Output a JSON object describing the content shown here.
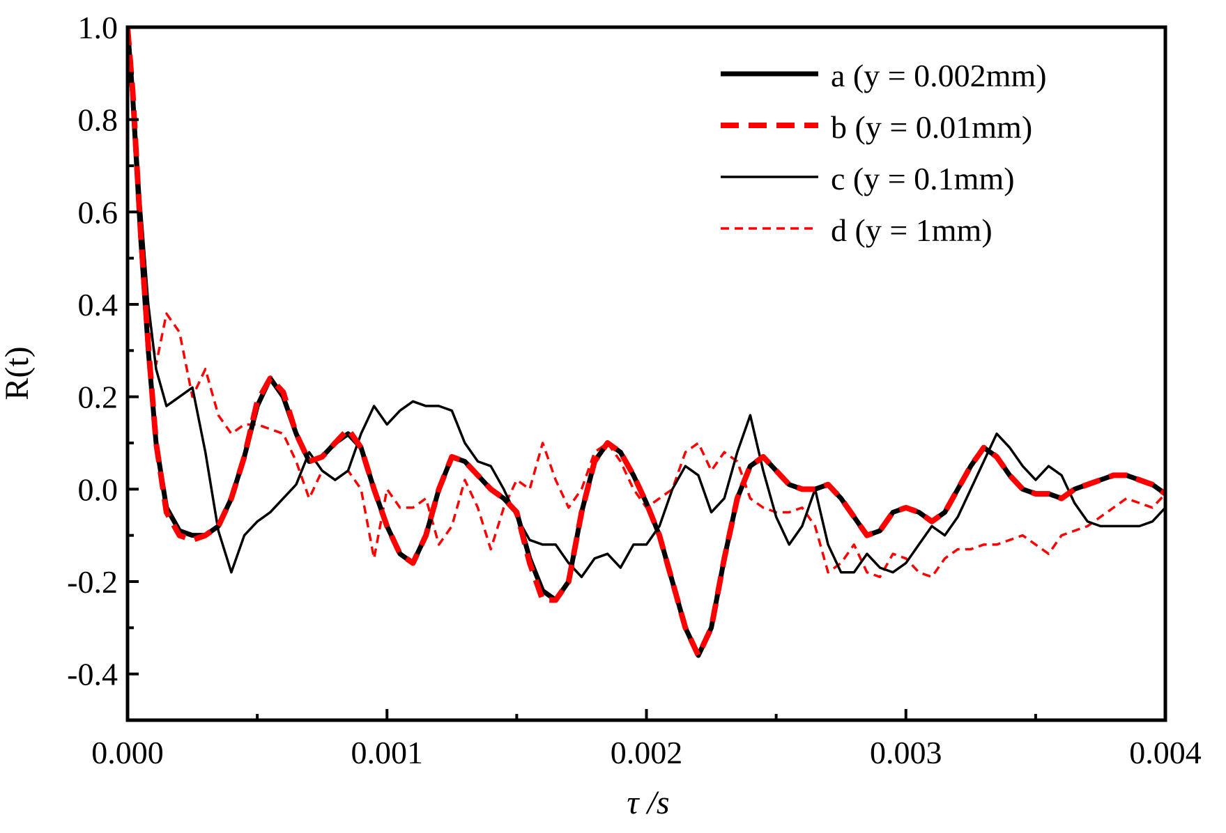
{
  "chart_data": {
    "type": "line",
    "title": "",
    "xlabel": "τ /s",
    "ylabel": "R(t)",
    "xlim": [
      0.0,
      0.004
    ],
    "ylim": [
      -0.5,
      1.0
    ],
    "x_ticks": [
      0.0,
      0.001,
      0.002,
      0.003,
      0.004
    ],
    "x_tick_labels": [
      "0.000",
      "0.001",
      "0.002",
      "0.003",
      "0.004"
    ],
    "y_ticks": [
      1.0,
      0.8,
      0.6,
      0.4,
      0.2,
      0.0,
      -0.2,
      -0.4
    ],
    "y_tick_labels": [
      "1.0",
      "0.8",
      "0.6",
      "0.4",
      "0.2",
      "0.0",
      "-0.2",
      "-0.4"
    ],
    "grid": false,
    "legend_position": "top-right",
    "series": [
      {
        "name": "a (y = 0.002mm)",
        "color": "#000000",
        "line_style": "solid-thick",
        "x": [
          0.0,
          2e-05,
          5e-05,
          8e-05,
          0.00011,
          0.00015,
          0.0002,
          0.00025,
          0.0003,
          0.00035,
          0.0004,
          0.00045,
          0.0005,
          0.00055,
          0.0006,
          0.00065,
          0.0007,
          0.00075,
          0.0008,
          0.00085,
          0.0009,
          0.00095,
          0.001,
          0.00105,
          0.0011,
          0.00115,
          0.0012,
          0.00125,
          0.0013,
          0.00135,
          0.0014,
          0.00145,
          0.0015,
          0.00155,
          0.0016,
          0.00165,
          0.0017,
          0.00175,
          0.0018,
          0.00185,
          0.0019,
          0.00195,
          0.002,
          0.00205,
          0.0021,
          0.00215,
          0.0022,
          0.00225,
          0.0023,
          0.00235,
          0.0024,
          0.00245,
          0.0025,
          0.00255,
          0.0026,
          0.00265,
          0.0027,
          0.00275,
          0.0028,
          0.00285,
          0.0029,
          0.00295,
          0.003,
          0.00305,
          0.0031,
          0.00315,
          0.0032,
          0.00325,
          0.0033,
          0.00335,
          0.0034,
          0.00345,
          0.0035,
          0.00355,
          0.0036,
          0.00365,
          0.0037,
          0.00375,
          0.0038,
          0.00385,
          0.0039,
          0.00395,
          0.004
        ],
        "y": [
          1.0,
          0.85,
          0.55,
          0.3,
          0.1,
          -0.04,
          -0.09,
          -0.1,
          -0.1,
          -0.08,
          -0.02,
          0.07,
          0.18,
          0.24,
          0.2,
          0.12,
          0.06,
          0.07,
          0.1,
          0.12,
          0.09,
          0.0,
          -0.08,
          -0.14,
          -0.16,
          -0.1,
          0.0,
          0.07,
          0.06,
          0.03,
          0.0,
          -0.02,
          -0.05,
          -0.15,
          -0.22,
          -0.24,
          -0.2,
          -0.05,
          0.06,
          0.1,
          0.08,
          0.03,
          -0.03,
          -0.1,
          -0.2,
          -0.3,
          -0.36,
          -0.3,
          -0.15,
          -0.02,
          0.05,
          0.07,
          0.04,
          0.01,
          0.0,
          0.0,
          0.01,
          -0.02,
          -0.06,
          -0.1,
          -0.09,
          -0.05,
          -0.04,
          -0.05,
          -0.07,
          -0.05,
          0.0,
          0.05,
          0.09,
          0.07,
          0.03,
          0.0,
          -0.01,
          -0.01,
          -0.02,
          0.0,
          0.01,
          0.02,
          0.03,
          0.03,
          0.02,
          0.01,
          -0.01
        ]
      },
      {
        "name": "b (y = 0.01mm)",
        "color": "#ff0000",
        "line_style": "dashed-thick",
        "x": [
          0.0,
          2e-05,
          5e-05,
          8e-05,
          0.00011,
          0.00015,
          0.0002,
          0.00025,
          0.0003,
          0.00035,
          0.0004,
          0.00045,
          0.0005,
          0.00055,
          0.0006,
          0.00065,
          0.0007,
          0.00075,
          0.0008,
          0.00085,
          0.0009,
          0.00095,
          0.001,
          0.00105,
          0.0011,
          0.00115,
          0.0012,
          0.00125,
          0.0013,
          0.00135,
          0.0014,
          0.00145,
          0.0015,
          0.00155,
          0.0016,
          0.00165,
          0.0017,
          0.00175,
          0.0018,
          0.00185,
          0.0019,
          0.00195,
          0.002,
          0.00205,
          0.0021,
          0.00215,
          0.0022,
          0.00225,
          0.0023,
          0.00235,
          0.0024,
          0.00245,
          0.0025,
          0.00255,
          0.0026,
          0.00265,
          0.0027,
          0.00275,
          0.0028,
          0.00285,
          0.0029,
          0.00295,
          0.003,
          0.00305,
          0.0031,
          0.00315,
          0.0032,
          0.00325,
          0.0033,
          0.00335,
          0.0034,
          0.00345,
          0.0035,
          0.00355,
          0.0036,
          0.00365,
          0.0037,
          0.00375,
          0.0038,
          0.00385,
          0.0039,
          0.00395,
          0.004
        ],
        "y": [
          1.0,
          0.86,
          0.56,
          0.31,
          0.1,
          -0.05,
          -0.1,
          -0.11,
          -0.1,
          -0.08,
          -0.02,
          0.07,
          0.19,
          0.24,
          0.21,
          0.12,
          0.06,
          0.07,
          0.1,
          0.13,
          0.09,
          0.0,
          -0.08,
          -0.14,
          -0.16,
          -0.1,
          0.0,
          0.07,
          0.06,
          0.03,
          0.0,
          -0.02,
          -0.05,
          -0.16,
          -0.24,
          -0.24,
          -0.2,
          -0.05,
          0.06,
          0.1,
          0.08,
          0.03,
          -0.03,
          -0.1,
          -0.2,
          -0.3,
          -0.36,
          -0.3,
          -0.15,
          -0.02,
          0.05,
          0.07,
          0.04,
          0.01,
          0.0,
          0.0,
          0.01,
          -0.02,
          -0.06,
          -0.1,
          -0.09,
          -0.05,
          -0.04,
          -0.05,
          -0.07,
          -0.05,
          0.0,
          0.05,
          0.09,
          0.07,
          0.03,
          0.0,
          -0.01,
          -0.01,
          -0.02,
          0.0,
          0.01,
          0.02,
          0.03,
          0.03,
          0.02,
          0.01,
          -0.01
        ]
      },
      {
        "name": "c (y = 0.1mm)",
        "color": "#000000",
        "line_style": "solid-thin",
        "x": [
          0.0,
          2e-05,
          5e-05,
          8e-05,
          0.00011,
          0.00015,
          0.0002,
          0.00025,
          0.0003,
          0.00035,
          0.0004,
          0.00045,
          0.0005,
          0.00055,
          0.0006,
          0.00065,
          0.0007,
          0.00075,
          0.0008,
          0.00085,
          0.0009,
          0.00095,
          0.001,
          0.00105,
          0.0011,
          0.00115,
          0.0012,
          0.00125,
          0.0013,
          0.00135,
          0.0014,
          0.00145,
          0.0015,
          0.00155,
          0.0016,
          0.00165,
          0.0017,
          0.00175,
          0.0018,
          0.00185,
          0.0019,
          0.00195,
          0.002,
          0.00205,
          0.0021,
          0.00215,
          0.0022,
          0.00225,
          0.0023,
          0.00235,
          0.0024,
          0.00245,
          0.0025,
          0.00255,
          0.0026,
          0.00265,
          0.0027,
          0.00275,
          0.0028,
          0.00285,
          0.0029,
          0.00295,
          0.003,
          0.00305,
          0.0031,
          0.00315,
          0.0032,
          0.00325,
          0.0033,
          0.00335,
          0.0034,
          0.00345,
          0.0035,
          0.00355,
          0.0036,
          0.00365,
          0.0037,
          0.00375,
          0.0038,
          0.00385,
          0.0039,
          0.00395,
          0.004
        ],
        "y": [
          1.0,
          0.88,
          0.62,
          0.4,
          0.26,
          0.18,
          0.2,
          0.22,
          0.08,
          -0.09,
          -0.18,
          -0.1,
          -0.07,
          -0.05,
          -0.02,
          0.01,
          0.08,
          0.04,
          0.02,
          0.04,
          0.12,
          0.18,
          0.14,
          0.17,
          0.19,
          0.18,
          0.18,
          0.17,
          0.1,
          0.06,
          0.05,
          0.0,
          -0.06,
          -0.11,
          -0.12,
          -0.12,
          -0.16,
          -0.19,
          -0.15,
          -0.14,
          -0.17,
          -0.12,
          -0.12,
          -0.08,
          0.0,
          0.05,
          0.03,
          -0.05,
          -0.02,
          0.08,
          0.16,
          0.04,
          -0.06,
          -0.12,
          -0.08,
          0.0,
          -0.12,
          -0.18,
          -0.18,
          -0.14,
          -0.17,
          -0.18,
          -0.16,
          -0.12,
          -0.08,
          -0.1,
          -0.06,
          0.0,
          0.06,
          0.12,
          0.09,
          0.05,
          0.02,
          0.05,
          0.03,
          -0.03,
          -0.07,
          -0.08,
          -0.08,
          -0.08,
          -0.08,
          -0.07,
          -0.04
        ]
      },
      {
        "name": "d (y = 1mm)",
        "color": "#ff0000",
        "line_style": "dashed-thin",
        "x": [
          0.0,
          2e-05,
          5e-05,
          8e-05,
          0.00011,
          0.00015,
          0.0002,
          0.00025,
          0.0003,
          0.00035,
          0.0004,
          0.00045,
          0.0005,
          0.00055,
          0.0006,
          0.00065,
          0.0007,
          0.00075,
          0.0008,
          0.00085,
          0.0009,
          0.00095,
          0.001,
          0.00105,
          0.0011,
          0.00115,
          0.0012,
          0.00125,
          0.0013,
          0.00135,
          0.0014,
          0.00145,
          0.0015,
          0.00155,
          0.0016,
          0.00165,
          0.0017,
          0.00175,
          0.0018,
          0.00185,
          0.0019,
          0.00195,
          0.002,
          0.00205,
          0.0021,
          0.00215,
          0.0022,
          0.00225,
          0.0023,
          0.00235,
          0.0024,
          0.00245,
          0.0025,
          0.00255,
          0.0026,
          0.00265,
          0.0027,
          0.00275,
          0.0028,
          0.00285,
          0.0029,
          0.00295,
          0.003,
          0.00305,
          0.0031,
          0.00315,
          0.0032,
          0.00325,
          0.0033,
          0.00335,
          0.0034,
          0.00345,
          0.0035,
          0.00355,
          0.0036,
          0.00365,
          0.0037,
          0.00375,
          0.0038,
          0.00385,
          0.0039,
          0.00395,
          0.004
        ],
        "y": [
          1.0,
          0.85,
          0.58,
          0.38,
          0.27,
          0.38,
          0.34,
          0.2,
          0.26,
          0.16,
          0.12,
          0.14,
          0.14,
          0.13,
          0.12,
          0.06,
          -0.02,
          0.04,
          0.02,
          0.04,
          0.0,
          -0.15,
          0.0,
          -0.04,
          -0.04,
          -0.02,
          -0.12,
          -0.08,
          0.02,
          -0.04,
          -0.13,
          -0.04,
          0.02,
          0.0,
          0.1,
          0.02,
          -0.04,
          0.0,
          0.08,
          0.1,
          0.06,
          0.0,
          -0.04,
          -0.02,
          0.0,
          0.08,
          0.1,
          0.04,
          0.08,
          0.06,
          -0.02,
          -0.04,
          -0.05,
          -0.05,
          -0.04,
          -0.08,
          -0.18,
          -0.16,
          -0.12,
          -0.18,
          -0.19,
          -0.14,
          -0.15,
          -0.18,
          -0.19,
          -0.15,
          -0.13,
          -0.13,
          -0.12,
          -0.12,
          -0.11,
          -0.1,
          -0.12,
          -0.14,
          -0.1,
          -0.09,
          -0.08,
          -0.06,
          -0.04,
          -0.02,
          -0.03,
          -0.04,
          -0.01
        ]
      }
    ]
  }
}
